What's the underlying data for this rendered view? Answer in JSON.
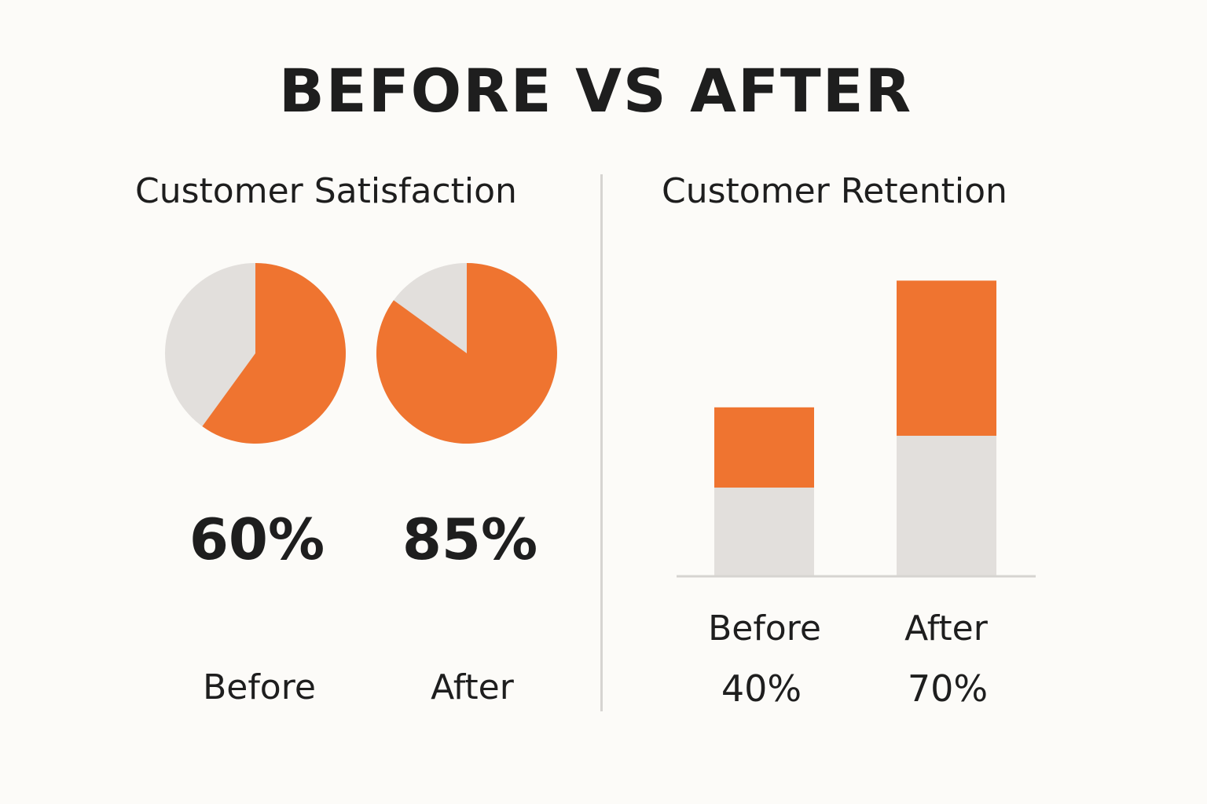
{
  "title": "BEFORE VS AFTER",
  "colors": {
    "accent": "#ef7430",
    "remainder": "#e2dfdc",
    "background": "#fcfbf8",
    "text": "#1e1e1e",
    "axis": "#d6d4d1"
  },
  "chart_data": [
    {
      "type": "pie",
      "title": "Customer Satisfaction",
      "categories": [
        "Before",
        "After"
      ],
      "values": [
        60,
        85
      ],
      "value_labels": [
        "60%",
        "85%"
      ],
      "unit": "%",
      "max": 100
    },
    {
      "type": "bar",
      "title": "Customer Retention",
      "categories": [
        "Before",
        "After"
      ],
      "values": [
        40,
        70
      ],
      "value_labels": [
        "40%",
        "70%"
      ],
      "unit": "%",
      "ylim": [
        0,
        100
      ],
      "grid": false,
      "stacked_remainder": true
    }
  ]
}
